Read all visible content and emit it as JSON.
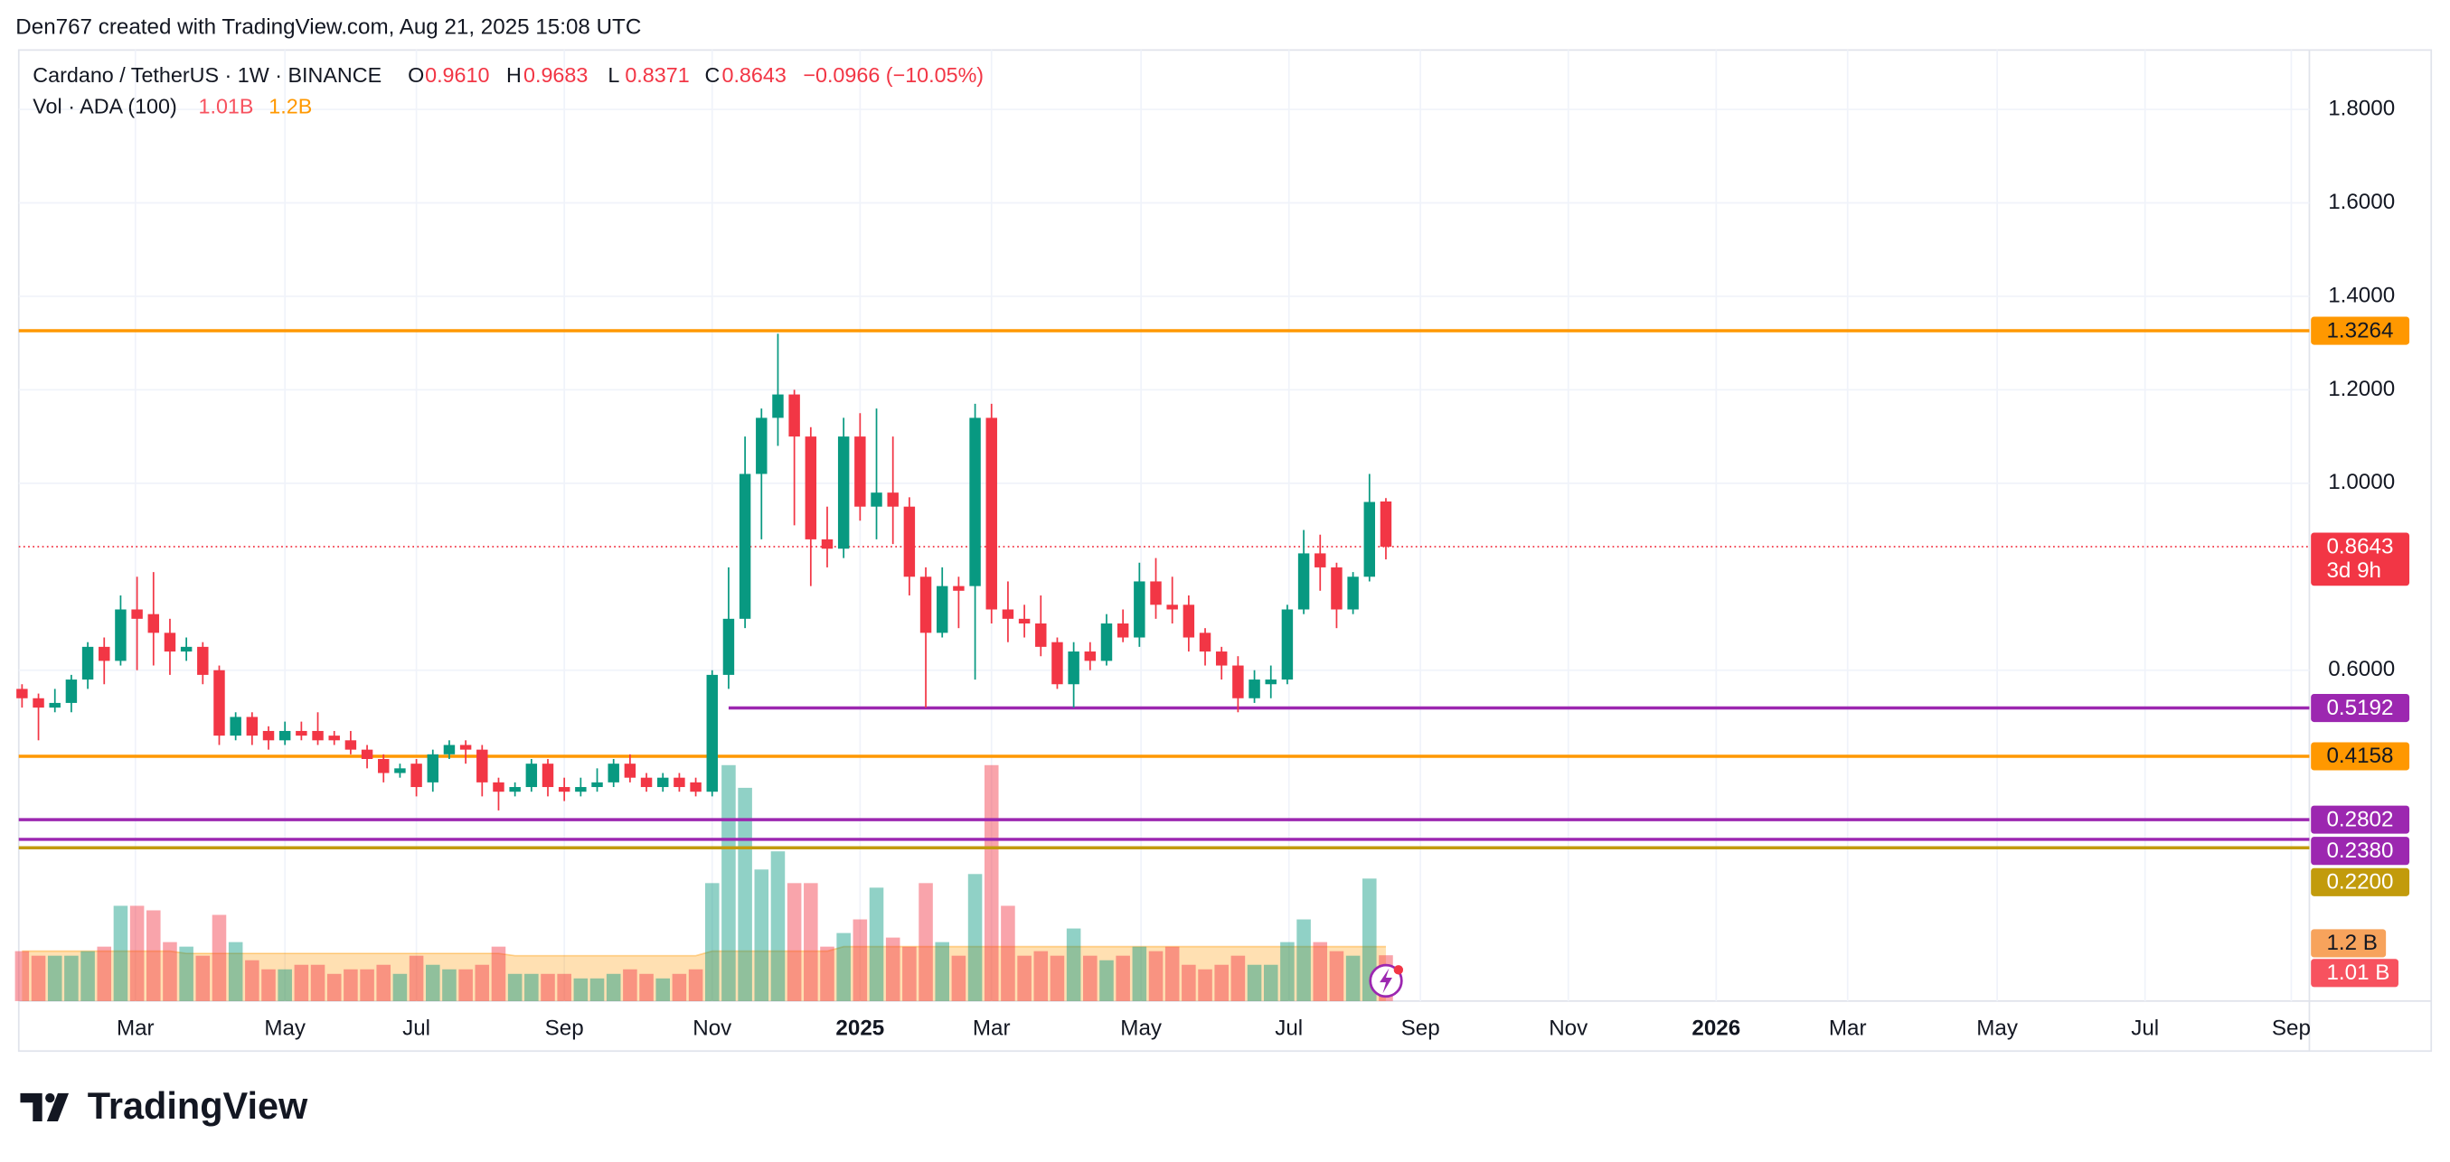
{
  "header": "Den767 created with TradingView.com, Aug 21, 2025 15:08 UTC",
  "footer": {
    "brand": "TradingView"
  },
  "chart_data": {
    "type": "candlestick",
    "title": "Cardano / TetherUS · 1W · BINANCE",
    "legend": {
      "letters": [
        "O",
        "H",
        "L",
        "C"
      ],
      "open": "0.9610",
      "high": "0.9683",
      "low": "0.8371",
      "close": "0.8643",
      "change": "−0.0966 (−10.05%)"
    },
    "volume_legend": {
      "label": "Vol · ADA (100)",
      "last": "1.01B",
      "ma": "1.2B"
    },
    "colors": {
      "up": "#089981",
      "down": "#f23645",
      "ma": "#ff9800"
    },
    "open": [
      0.56,
      0.54,
      0.52,
      0.53,
      0.58,
      0.65,
      0.62,
      0.73,
      0.72,
      0.68,
      0.64,
      0.65,
      0.6,
      0.46,
      0.5,
      0.47,
      0.45,
      0.47,
      0.47,
      0.46,
      0.45,
      0.43,
      0.41,
      0.38,
      0.4,
      0.36,
      0.42,
      0.44,
      0.43,
      0.36,
      0.34,
      0.35,
      0.4,
      0.35,
      0.34,
      0.35,
      0.36,
      0.4,
      0.37,
      0.35,
      0.37,
      0.36,
      0.34,
      0.59,
      0.71,
      1.02,
      1.14,
      1.19,
      1.1,
      0.88,
      0.86,
      1.1,
      0.95,
      0.98,
      0.95,
      0.8,
      0.68,
      0.78,
      0.78,
      1.14,
      0.73,
      0.71,
      0.7,
      0.66,
      0.57,
      0.64,
      0.62,
      0.7,
      0.67,
      0.79,
      0.74,
      0.74,
      0.68,
      0.64,
      0.61,
      0.54,
      0.57,
      0.58,
      0.73,
      0.85,
      0.82,
      0.73,
      0.8,
      0.961
    ],
    "high": [
      0.57,
      0.55,
      0.56,
      0.59,
      0.66,
      0.67,
      0.76,
      0.8,
      0.81,
      0.71,
      0.67,
      0.66,
      0.61,
      0.51,
      0.51,
      0.48,
      0.49,
      0.49,
      0.51,
      0.47,
      0.47,
      0.44,
      0.42,
      0.4,
      0.41,
      0.43,
      0.45,
      0.45,
      0.44,
      0.37,
      0.36,
      0.41,
      0.41,
      0.37,
      0.37,
      0.39,
      0.41,
      0.42,
      0.38,
      0.38,
      0.38,
      0.37,
      0.6,
      0.82,
      1.1,
      1.16,
      1.32,
      1.2,
      1.12,
      0.95,
      1.14,
      1.15,
      1.16,
      1.1,
      0.97,
      0.82,
      0.82,
      0.8,
      1.17,
      1.17,
      0.79,
      0.74,
      0.76,
      0.67,
      0.66,
      0.66,
      0.72,
      0.73,
      0.83,
      0.84,
      0.8,
      0.76,
      0.69,
      0.65,
      0.63,
      0.6,
      0.61,
      0.74,
      0.9,
      0.89,
      0.83,
      0.81,
      1.02,
      0.9683
    ],
    "low": [
      0.52,
      0.45,
      0.51,
      0.51,
      0.56,
      0.57,
      0.61,
      0.6,
      0.61,
      0.59,
      0.62,
      0.57,
      0.44,
      0.45,
      0.44,
      0.43,
      0.44,
      0.45,
      0.44,
      0.44,
      0.42,
      0.39,
      0.36,
      0.37,
      0.33,
      0.34,
      0.41,
      0.4,
      0.33,
      0.3,
      0.33,
      0.34,
      0.33,
      0.32,
      0.33,
      0.34,
      0.35,
      0.36,
      0.34,
      0.34,
      0.34,
      0.33,
      0.33,
      0.56,
      0.69,
      0.88,
      1.08,
      0.91,
      0.78,
      0.82,
      0.84,
      0.92,
      0.88,
      0.87,
      0.76,
      0.52,
      0.67,
      0.69,
      0.58,
      0.7,
      0.66,
      0.67,
      0.63,
      0.56,
      0.52,
      0.6,
      0.61,
      0.66,
      0.65,
      0.71,
      0.7,
      0.64,
      0.61,
      0.58,
      0.51,
      0.53,
      0.54,
      0.57,
      0.72,
      0.77,
      0.69,
      0.72,
      0.79,
      0.8371
    ],
    "close": [
      0.54,
      0.52,
      0.53,
      0.58,
      0.65,
      0.62,
      0.73,
      0.71,
      0.68,
      0.64,
      0.65,
      0.59,
      0.46,
      0.5,
      0.46,
      0.45,
      0.47,
      0.46,
      0.45,
      0.45,
      0.43,
      0.41,
      0.38,
      0.39,
      0.35,
      0.42,
      0.44,
      0.43,
      0.36,
      0.34,
      0.35,
      0.4,
      0.35,
      0.34,
      0.35,
      0.36,
      0.4,
      0.37,
      0.35,
      0.37,
      0.35,
      0.34,
      0.59,
      0.71,
      1.02,
      1.14,
      1.19,
      1.1,
      0.88,
      0.86,
      1.1,
      0.95,
      0.98,
      0.95,
      0.8,
      0.68,
      0.78,
      0.77,
      1.14,
      0.73,
      0.71,
      0.7,
      0.65,
      0.57,
      0.64,
      0.62,
      0.7,
      0.67,
      0.79,
      0.74,
      0.73,
      0.67,
      0.64,
      0.61,
      0.54,
      0.58,
      0.58,
      0.73,
      0.85,
      0.82,
      0.73,
      0.8,
      0.96,
      0.8643
    ],
    "volume": [
      1.1,
      1.0,
      1.0,
      1.0,
      1.1,
      1.2,
      2.1,
      2.1,
      2.0,
      1.3,
      1.2,
      1.0,
      1.9,
      1.3,
      0.9,
      0.7,
      0.7,
      0.8,
      0.8,
      0.6,
      0.7,
      0.7,
      0.8,
      0.6,
      1.0,
      0.8,
      0.7,
      0.7,
      0.8,
      1.2,
      0.6,
      0.6,
      0.6,
      0.6,
      0.5,
      0.5,
      0.6,
      0.7,
      0.6,
      0.5,
      0.6,
      0.7,
      2.6,
      5.2,
      4.7,
      2.9,
      3.3,
      2.6,
      2.6,
      1.2,
      1.5,
      1.8,
      2.5,
      1.4,
      1.2,
      2.6,
      1.3,
      1.0,
      2.8,
      5.2,
      2.1,
      1.0,
      1.1,
      1.0,
      1.6,
      1.0,
      0.9,
      1.0,
      1.2,
      1.1,
      1.2,
      0.8,
      0.7,
      0.8,
      1.0,
      0.8,
      0.8,
      1.3,
      1.8,
      1.3,
      1.1,
      1.0,
      2.7,
      1.01
    ],
    "volume_ma": [
      1.1,
      1.1,
      1.1,
      1.1,
      1.1,
      1.1,
      1.1,
      1.1,
      1.1,
      1.1,
      1.05,
      1.05,
      1.05,
      1.05,
      1.05,
      1.05,
      1.05,
      1.05,
      1.05,
      1.05,
      1.05,
      1.05,
      1.05,
      1.05,
      1.05,
      1.05,
      1.05,
      1.05,
      1.05,
      1.05,
      1.0,
      1.0,
      1.0,
      1.0,
      1.0,
      1.0,
      1.0,
      1.0,
      1.0,
      1.0,
      1.0,
      1.0,
      1.1,
      1.1,
      1.1,
      1.1,
      1.1,
      1.1,
      1.1,
      1.1,
      1.2,
      1.2,
      1.2,
      1.2,
      1.2,
      1.2,
      1.2,
      1.2,
      1.2,
      1.2,
      1.2,
      1.2,
      1.2,
      1.2,
      1.2,
      1.2,
      1.2,
      1.2,
      1.2,
      1.2,
      1.2,
      1.2,
      1.2,
      1.2,
      1.2,
      1.2,
      1.2,
      1.2,
      1.2,
      1.2,
      1.2,
      1.2,
      1.2,
      1.2
    ],
    "vol_ylim": [
      0,
      5.3
    ],
    "volume_axis_labels": {
      "last": "1.01 B",
      "ma": "1.2 B",
      "top": "0"
    },
    "price_label": {
      "value": "0.8643",
      "countdown": "3d 9h"
    },
    "xlim": [
      -0.2,
      139.2
    ],
    "xticks": [
      {
        "value": 6.9,
        "label": "Mar"
      },
      {
        "value": 16.0,
        "label": "May"
      },
      {
        "value": 24.0,
        "label": "Jul"
      },
      {
        "value": 33.0,
        "label": "Sep"
      },
      {
        "value": 42.0,
        "label": "Nov"
      },
      {
        "value": 51.0,
        "label": "2025"
      },
      {
        "value": 59.0,
        "label": "Mar"
      },
      {
        "value": 68.1,
        "label": "May"
      },
      {
        "value": 77.1,
        "label": "Jul"
      },
      {
        "value": 85.1,
        "label": "Sep"
      },
      {
        "value": 94.1,
        "label": "Nov"
      },
      {
        "value": 103.1,
        "label": "2026"
      },
      {
        "value": 111.1,
        "label": "Mar"
      },
      {
        "value": 120.2,
        "label": "May"
      },
      {
        "value": 129.2,
        "label": "Jul"
      },
      {
        "value": 138.1,
        "label": "Sep"
      }
    ],
    "ylim": [
      -0.108,
      1.927
    ],
    "yticks": [
      {
        "value": 0.6,
        "label": "0.6000"
      },
      {
        "value": 1.0,
        "label": "1.0000"
      },
      {
        "value": 1.2,
        "label": "1.2000"
      },
      {
        "value": 1.4,
        "label": "1.4000"
      },
      {
        "value": 1.6,
        "label": "1.6000"
      },
      {
        "value": 1.8,
        "label": "1.8000"
      }
    ],
    "grid": true,
    "levels": [
      {
        "value": 1.3264,
        "label": "1.3264",
        "color": "#ff9800",
        "text_color": "#131722"
      },
      {
        "value": 0.5192,
        "label": "0.5192",
        "color": "#9c27b0",
        "text_color": "#ffffff",
        "from_index": 43
      },
      {
        "value": 0.4158,
        "label": "0.4158",
        "color": "#ff9800",
        "text_color": "#131722"
      },
      {
        "value": 0.2802,
        "label": "0.2802",
        "color": "#9c27b0",
        "text_color": "#ffffff"
      },
      {
        "value": 0.238,
        "label": "0.2380",
        "color": "#9c27b0",
        "text_color": "#ffffff"
      },
      {
        "value": 0.22,
        "label": "0.2200",
        "color": "#c29b0c",
        "text_color": "#ffffff"
      }
    ]
  }
}
